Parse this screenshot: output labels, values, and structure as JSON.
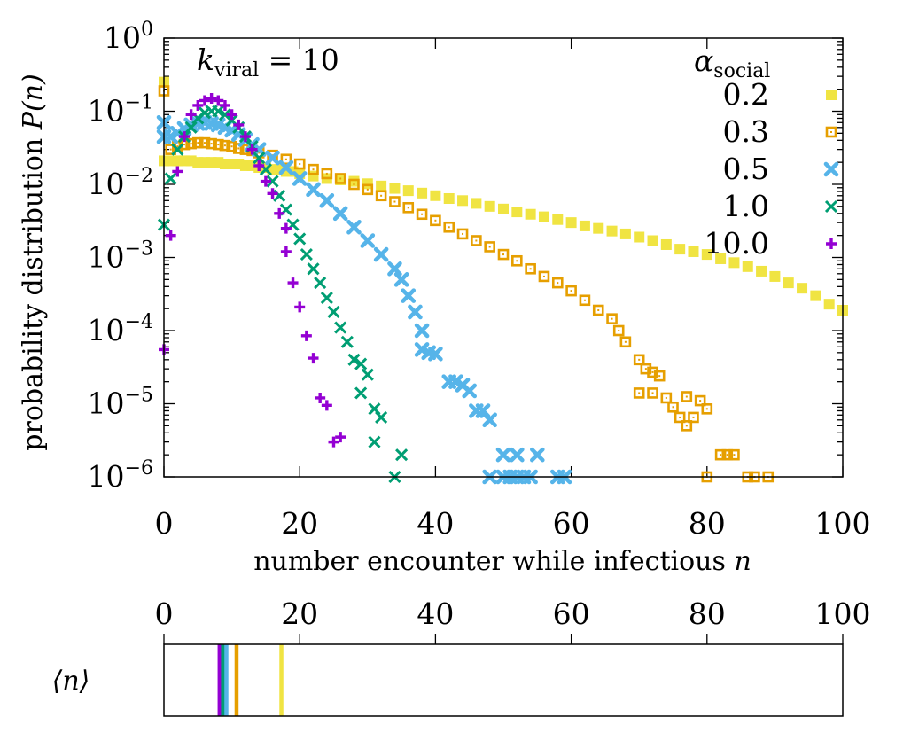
{
  "chart_data": [
    {
      "type": "scatter",
      "scale": {
        "x": "linear",
        "y": "log"
      },
      "xlabel_text": "number encounter while infectious ",
      "xlabel_var": "n",
      "ylabel_text": "probability distribution ",
      "ylabel_var": "P(n)",
      "annotation": {
        "var": "k",
        "sub": "viral",
        "rest": " = 10"
      },
      "legend": {
        "title_var": "α",
        "title_sub": "social",
        "placement": "top-right"
      },
      "xlim": [
        0,
        100
      ],
      "ylim_exponent": [
        -6,
        0
      ],
      "x_ticks": [
        "0",
        "20",
        "40",
        "60",
        "80",
        "100"
      ],
      "y_ticks": [
        {
          "base": "10",
          "exp": "0"
        },
        {
          "base": "10",
          "exp": "−1"
        },
        {
          "base": "10",
          "exp": "−2"
        },
        {
          "base": "10",
          "exp": "−3"
        },
        {
          "base": "10",
          "exp": "−4"
        },
        {
          "base": "10",
          "exp": "−5"
        },
        {
          "base": "10",
          "exp": "−6"
        }
      ],
      "series": [
        {
          "name": "0.2",
          "color": "#f0e442",
          "marker": "filled-square",
          "points": [
            [
              0,
              0.25
            ],
            [
              0,
              0.021
            ],
            [
              1,
              0.021
            ],
            [
              2,
              0.021
            ],
            [
              3,
              0.021
            ],
            [
              4,
              0.021
            ],
            [
              5,
              0.02
            ],
            [
              6,
              0.02
            ],
            [
              7,
              0.02
            ],
            [
              8,
              0.02
            ],
            [
              9,
              0.019
            ],
            [
              10,
              0.019
            ],
            [
              11,
              0.019
            ],
            [
              12,
              0.018
            ],
            [
              13,
              0.018
            ],
            [
              14,
              0.017
            ],
            [
              15,
              0.017
            ],
            [
              16,
              0.016
            ],
            [
              17,
              0.016
            ],
            [
              18,
              0.015
            ],
            [
              19,
              0.015
            ],
            [
              20,
              0.014
            ],
            [
              22,
              0.013
            ],
            [
              24,
              0.012
            ],
            [
              26,
              0.0115
            ],
            [
              28,
              0.011
            ],
            [
              30,
              0.0102
            ],
            [
              32,
              0.0095
            ],
            [
              34,
              0.0088
            ],
            [
              36,
              0.0082
            ],
            [
              38,
              0.0076
            ],
            [
              40,
              0.007
            ],
            [
              42,
              0.0064
            ],
            [
              44,
              0.006
            ],
            [
              46,
              0.0055
            ],
            [
              48,
              0.005
            ],
            [
              50,
              0.0046
            ],
            [
              52,
              0.0042
            ],
            [
              54,
              0.0039
            ],
            [
              56,
              0.0036
            ],
            [
              58,
              0.0033
            ],
            [
              60,
              0.003
            ],
            [
              62,
              0.0027
            ],
            [
              64,
              0.0025
            ],
            [
              66,
              0.0023
            ],
            [
              68,
              0.0021
            ],
            [
              70,
              0.0019
            ],
            [
              72,
              0.0017
            ],
            [
              74,
              0.0015
            ],
            [
              76,
              0.0013
            ],
            [
              78,
              0.0012
            ],
            [
              80,
              0.0011
            ],
            [
              82,
              0.00096
            ],
            [
              84,
              0.00085
            ],
            [
              86,
              0.00075
            ],
            [
              88,
              0.00065
            ],
            [
              90,
              0.00055
            ],
            [
              92,
              0.00045
            ],
            [
              94,
              0.00038
            ],
            [
              96,
              0.0003
            ],
            [
              98,
              0.00023
            ],
            [
              100,
              0.00019
            ]
          ]
        },
        {
          "name": "0.3",
          "color": "#e69f00",
          "marker": "open-square",
          "points": [
            [
              0,
              0.19
            ],
            [
              1,
              0.03
            ],
            [
              2,
              0.033
            ],
            [
              3,
              0.035
            ],
            [
              4,
              0.036
            ],
            [
              5,
              0.037
            ],
            [
              6,
              0.037
            ],
            [
              7,
              0.036
            ],
            [
              8,
              0.035
            ],
            [
              9,
              0.034
            ],
            [
              10,
              0.033
            ],
            [
              11,
              0.031
            ],
            [
              12,
              0.03
            ],
            [
              13,
              0.029
            ],
            [
              14,
              0.027
            ],
            [
              16,
              0.025
            ],
            [
              18,
              0.022
            ],
            [
              20,
              0.019
            ],
            [
              22,
              0.016
            ],
            [
              24,
              0.014
            ],
            [
              26,
              0.012
            ],
            [
              28,
              0.01
            ],
            [
              30,
              0.0085
            ],
            [
              32,
              0.007
            ],
            [
              34,
              0.0058
            ],
            [
              36,
              0.0048
            ],
            [
              38,
              0.0039
            ],
            [
              40,
              0.0032
            ],
            [
              42,
              0.0026
            ],
            [
              44,
              0.0021
            ],
            [
              46,
              0.0017
            ],
            [
              48,
              0.0014
            ],
            [
              50,
              0.0011
            ],
            [
              52,
              0.0009
            ],
            [
              54,
              0.0007
            ],
            [
              56,
              0.00055
            ],
            [
              58,
              0.00045
            ],
            [
              60,
              0.00035
            ],
            [
              62,
              0.00026
            ],
            [
              64,
              0.00019
            ],
            [
              66,
              0.000145
            ],
            [
              67,
              0.0001
            ],
            [
              68,
              7e-05
            ],
            [
              70,
              4e-05
            ],
            [
              71,
              3e-05
            ],
            [
              72,
              2.7e-05
            ],
            [
              73,
              2.4e-05
            ],
            [
              70,
              1.4e-05
            ],
            [
              72,
              1.4e-05
            ],
            [
              74,
              1.2e-05
            ],
            [
              75,
              9e-06
            ],
            [
              77,
              1.25e-05
            ],
            [
              76,
              6.5e-06
            ],
            [
              77,
              5e-06
            ],
            [
              78,
              6.5e-06
            ],
            [
              79,
              1.1e-05
            ],
            [
              80,
              8.5e-06
            ],
            [
              82,
              2e-06
            ],
            [
              83,
              2e-06
            ],
            [
              84,
              2e-06
            ],
            [
              80,
              1e-06
            ],
            [
              86,
              1e-06
            ],
            [
              87,
              1e-06
            ],
            [
              89,
              1e-06
            ]
          ]
        },
        {
          "name": "0.5",
          "color": "#56b4e9",
          "marker": "filled-x",
          "points": [
            [
              0,
              0.07
            ],
            [
              0,
              0.045
            ],
            [
              1,
              0.045
            ],
            [
              2,
              0.05
            ],
            [
              3,
              0.058
            ],
            [
              4,
              0.065
            ],
            [
              5,
              0.068
            ],
            [
              6,
              0.07
            ],
            [
              7,
              0.068
            ],
            [
              8,
              0.065
            ],
            [
              9,
              0.06
            ],
            [
              10,
              0.055
            ],
            [
              11,
              0.048
            ],
            [
              12,
              0.041
            ],
            [
              13,
              0.035
            ],
            [
              14,
              0.03
            ],
            [
              16,
              0.023
            ],
            [
              18,
              0.017
            ],
            [
              20,
              0.012
            ],
            [
              22,
              0.0085
            ],
            [
              24,
              0.006
            ],
            [
              26,
              0.004
            ],
            [
              28,
              0.0026
            ],
            [
              30,
              0.0017
            ],
            [
              32,
              0.0011
            ],
            [
              34,
              0.0007
            ],
            [
              35,
              0.0005
            ],
            [
              36,
              0.0003
            ],
            [
              37,
              0.00018
            ],
            [
              38,
              0.0001
            ],
            [
              38,
              5.5e-05
            ],
            [
              39,
              5e-05
            ],
            [
              40,
              4.8e-05
            ],
            [
              42,
              2e-05
            ],
            [
              43,
              2e-05
            ],
            [
              44,
              1.8e-05
            ],
            [
              45,
              1.5e-05
            ],
            [
              46,
              8e-06
            ],
            [
              47,
              8e-06
            ],
            [
              48,
              6e-06
            ],
            [
              50,
              2e-06
            ],
            [
              52,
              2e-06
            ],
            [
              55,
              2e-06
            ],
            [
              48,
              1e-06
            ],
            [
              50,
              1e-06
            ],
            [
              51,
              1e-06
            ],
            [
              52,
              1e-06
            ],
            [
              53,
              1e-06
            ],
            [
              54,
              1e-06
            ],
            [
              58,
              1e-06
            ],
            [
              59,
              1e-06
            ]
          ]
        },
        {
          "name": "1.0",
          "color": "#009e73",
          "marker": "x",
          "points": [
            [
              0,
              0.0028
            ],
            [
              1,
              0.012
            ],
            [
              2,
              0.03
            ],
            [
              3,
              0.045
            ],
            [
              4,
              0.06
            ],
            [
              5,
              0.08
            ],
            [
              6,
              0.095
            ],
            [
              7,
              0.1
            ],
            [
              8,
              0.1
            ],
            [
              9,
              0.09
            ],
            [
              10,
              0.075
            ],
            [
              11,
              0.06
            ],
            [
              12,
              0.045
            ],
            [
              13,
              0.033
            ],
            [
              14,
              0.023
            ],
            [
              15,
              0.016
            ],
            [
              16,
              0.011
            ],
            [
              17,
              0.007
            ],
            [
              18,
              0.0045
            ],
            [
              19,
              0.0028
            ],
            [
              20,
              0.0018
            ],
            [
              21,
              0.0011
            ],
            [
              22,
              0.0007
            ],
            [
              23,
              0.00045
            ],
            [
              24,
              0.00028
            ],
            [
              25,
              0.00018
            ],
            [
              26,
              0.00011
            ],
            [
              27,
              7e-05
            ],
            [
              28,
              4e-05
            ],
            [
              29,
              3.5e-05
            ],
            [
              30,
              2.5e-05
            ],
            [
              29,
              1.4e-05
            ],
            [
              31,
              8.5e-06
            ],
            [
              32,
              6.5e-06
            ],
            [
              31,
              3e-06
            ],
            [
              35,
              2e-06
            ],
            [
              34,
              1e-06
            ]
          ]
        },
        {
          "name": "10.0",
          "color": "#9400d3",
          "marker": "plus",
          "points": [
            [
              0,
              5.5e-05
            ],
            [
              1,
              0.002
            ],
            [
              2,
              0.015
            ],
            [
              3,
              0.045
            ],
            [
              4,
              0.09
            ],
            [
              5,
              0.12
            ],
            [
              6,
              0.14
            ],
            [
              7,
              0.15
            ],
            [
              8,
              0.14
            ],
            [
              9,
              0.12
            ],
            [
              10,
              0.09
            ],
            [
              11,
              0.065
            ],
            [
              12,
              0.045
            ],
            [
              13,
              0.03
            ],
            [
              14,
              0.018
            ],
            [
              15,
              0.011
            ],
            [
              16,
              0.0075
            ],
            [
              17,
              0.004
            ],
            [
              18,
              0.0025
            ],
            [
              18,
              0.0012
            ],
            [
              19,
              0.00045
            ],
            [
              20,
              0.00021
            ],
            [
              21,
              8.5e-05
            ],
            [
              22,
              4.2e-05
            ],
            [
              23,
              1.2e-05
            ],
            [
              24,
              9.5e-06
            ],
            [
              25,
              3e-06
            ],
            [
              26,
              3.5e-06
            ]
          ]
        }
      ]
    },
    {
      "type": "strip",
      "ylabel_var": "⟨n⟩",
      "xlim": [
        0,
        100
      ],
      "x_ticks": [
        "0",
        "20",
        "40",
        "60",
        "80",
        "100"
      ],
      "lines": [
        {
          "alpha": "10.0",
          "x": 8.2,
          "color": "#9400d3"
        },
        {
          "alpha": "1.0",
          "x": 8.7,
          "color": "#009e73"
        },
        {
          "alpha": "0.5",
          "x": 9.2,
          "color": "#56b4e9"
        },
        {
          "alpha": "0.3",
          "x": 10.7,
          "color": "#e69f00"
        },
        {
          "alpha": "0.2",
          "x": 17.3,
          "color": "#f0e442"
        }
      ]
    }
  ]
}
